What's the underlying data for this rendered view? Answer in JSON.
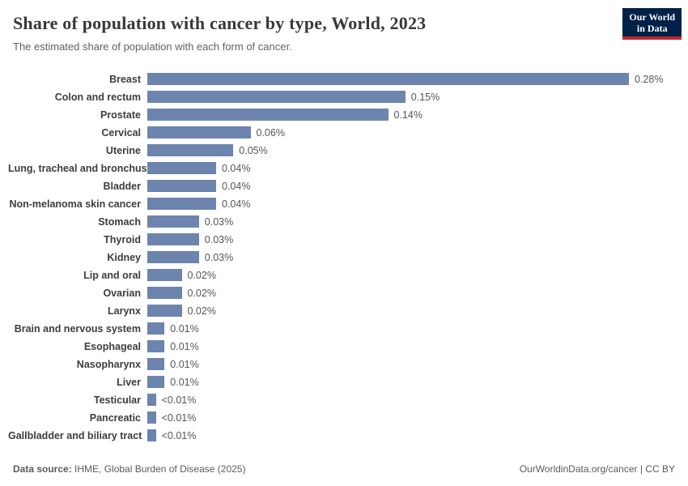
{
  "header": {
    "title": "Share of population with cancer by type, World, 2023",
    "subtitle": "The estimated share of population with each form of cancer.",
    "logo": {
      "line1": "Our World",
      "line2": "in Data"
    }
  },
  "chart_data": {
    "type": "bar",
    "orientation": "horizontal",
    "title": "Share of population with cancer by type, World, 2023",
    "xlabel": "",
    "ylabel": "",
    "xlim": [
      0,
      0.28
    ],
    "grid": false,
    "bar_color": "#6c84ae",
    "categories": [
      "Breast",
      "Colon and rectum",
      "Prostate",
      "Cervical",
      "Uterine",
      "Lung, tracheal and bronchus",
      "Bladder",
      "Non-melanoma skin cancer",
      "Stomach",
      "Thyroid",
      "Kidney",
      "Lip and oral",
      "Ovarian",
      "Larynx",
      "Brain and nervous system",
      "Esophageal",
      "Nasopharynx",
      "Liver",
      "Testicular",
      "Pancreatic",
      "Gallbladder and biliary tract"
    ],
    "values": [
      0.28,
      0.15,
      0.14,
      0.06,
      0.05,
      0.04,
      0.04,
      0.04,
      0.03,
      0.03,
      0.03,
      0.02,
      0.02,
      0.02,
      0.01,
      0.01,
      0.01,
      0.01,
      0.005,
      0.005,
      0.005
    ],
    "value_labels": [
      "0.28%",
      "0.15%",
      "0.14%",
      "0.06%",
      "0.05%",
      "0.04%",
      "0.04%",
      "0.04%",
      "0.03%",
      "0.03%",
      "0.03%",
      "0.02%",
      "0.02%",
      "0.02%",
      "0.01%",
      "0.01%",
      "0.01%",
      "0.01%",
      "<0.01%",
      "<0.01%",
      "<0.01%"
    ]
  },
  "footer": {
    "datasource_label": "Data source:",
    "datasource_value": " IHME, Global Burden of Disease (2025)",
    "credit": "OurWorldinData.org/cancer | CC BY"
  }
}
